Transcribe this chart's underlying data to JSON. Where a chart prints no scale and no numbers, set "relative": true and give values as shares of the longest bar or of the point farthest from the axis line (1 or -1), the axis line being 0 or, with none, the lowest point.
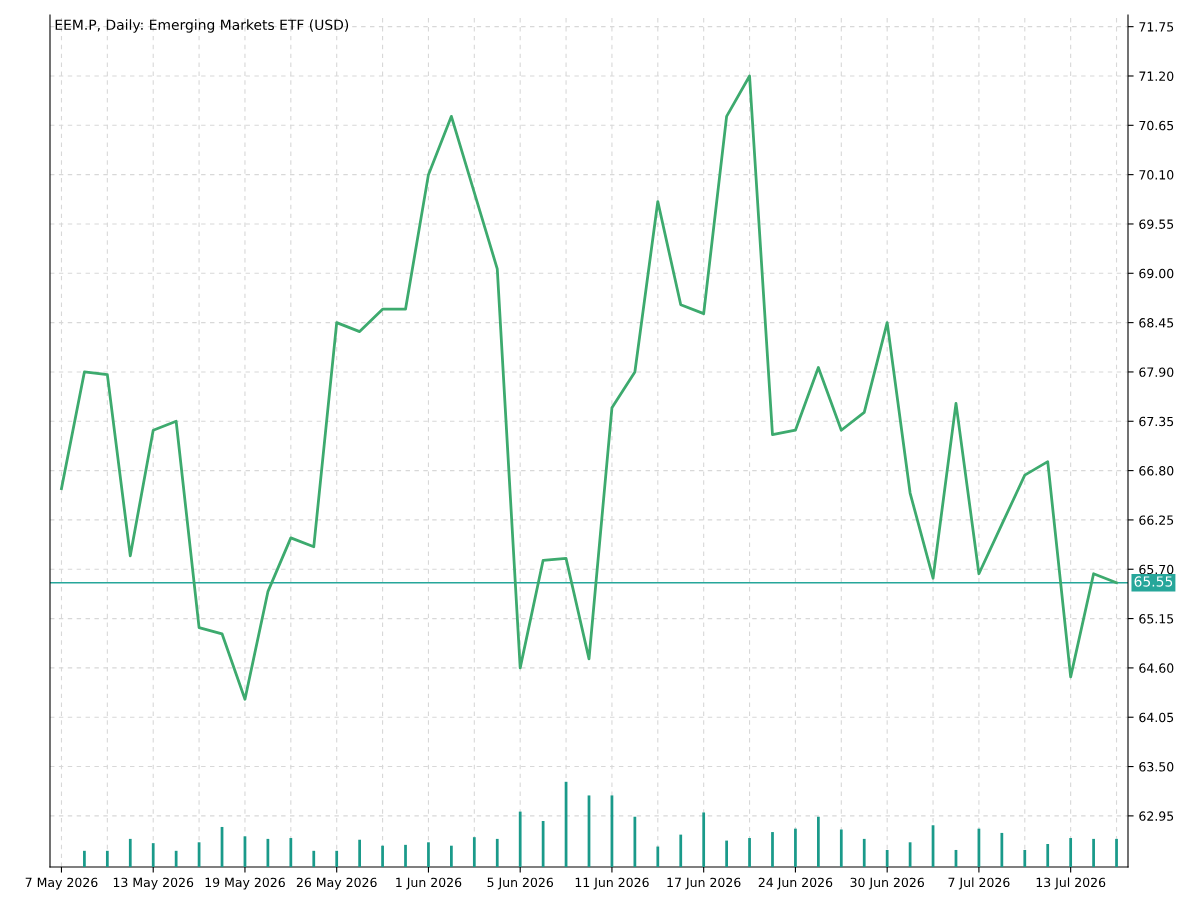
{
  "chart_data": [
    {
      "type": "line",
      "title": "EEM.P, Daily: Emerging Markets ETF (USD)",
      "categories": [
        "7 May 2026",
        null,
        null,
        null,
        "13 May 2026",
        null,
        null,
        null,
        "19 May 2026",
        null,
        null,
        null,
        "26 May 2026",
        null,
        null,
        null,
        "1 Jun 2026",
        null,
        null,
        null,
        "5 Jun 2026",
        null,
        null,
        null,
        "11 Jun 2026",
        null,
        null,
        null,
        "17 Jun 2026",
        null,
        null,
        null,
        "24 Jun 2026",
        null,
        null,
        null,
        "30 Jun 2026",
        null,
        null,
        null,
        "7 Jul 2026",
        null,
        null,
        null,
        "13 Jul 2026",
        null,
        null
      ],
      "series": [
        {
          "color": "#3daa6e",
          "values": [
            66.6,
            67.9,
            67.87,
            65.85,
            67.25,
            67.35,
            65.05,
            64.98,
            64.25,
            65.45,
            66.05,
            65.95,
            68.45,
            68.35,
            68.6,
            68.6,
            70.1,
            70.75,
            69.9,
            69.05,
            64.6,
            65.8,
            65.82,
            64.7,
            67.5,
            67.9,
            69.8,
            68.65,
            68.55,
            70.75,
            71.2,
            67.2,
            67.25,
            67.95,
            67.25,
            67.45,
            68.45,
            66.55,
            65.6,
            67.55,
            65.65,
            66.2,
            66.75,
            66.9,
            64.5,
            65.65,
            65.55
          ]
        }
      ],
      "ylim": [
        62.38,
        71.88
      ],
      "yticks": [
        {
          "value": 62.95,
          "label": "62.95"
        },
        {
          "value": 63.5,
          "label": "63.50"
        },
        {
          "value": 64.05,
          "label": "64.05"
        },
        {
          "value": 64.6,
          "label": "64.60"
        },
        {
          "value": 65.15,
          "label": "65.15"
        },
        {
          "value": 65.7,
          "label": "65.70"
        },
        {
          "value": 66.25,
          "label": "66.25"
        },
        {
          "value": 66.8,
          "label": "66.80"
        },
        {
          "value": 67.35,
          "label": "67.35"
        },
        {
          "value": 67.9,
          "label": "67.90"
        },
        {
          "value": 68.45,
          "label": "68.45"
        },
        {
          "value": 69.0,
          "label": "69.00"
        },
        {
          "value": 69.55,
          "label": "69.55"
        },
        {
          "value": 70.1,
          "label": "70.10"
        },
        {
          "value": 70.65,
          "label": "70.65"
        },
        {
          "value": 71.2,
          "label": "71.20"
        },
        {
          "value": 71.75,
          "label": "71.75"
        }
      ],
      "ref_lines": [
        {
          "axis": "y",
          "value": 65.55,
          "label": "65.55",
          "color": "#26a69a"
        }
      ],
      "grid": true
    },
    {
      "type": "bar",
      "relative": true,
      "categories": [
        null,
        null,
        null,
        null,
        null,
        null,
        null,
        null,
        null,
        null,
        null,
        null,
        null,
        null,
        null,
        null,
        null,
        null,
        null,
        null,
        null,
        null,
        null,
        null,
        null,
        null,
        null,
        null,
        null,
        null,
        null,
        null,
        null,
        null,
        null,
        null,
        null,
        null,
        null,
        null,
        null,
        null,
        null,
        null,
        null,
        null,
        null
      ],
      "series": [
        {
          "color": "#1a9a8a",
          "values": [
            null,
            0.19,
            0.19,
            0.33,
            0.28,
            0.19,
            0.29,
            0.47,
            0.36,
            0.33,
            0.34,
            0.19,
            0.19,
            0.32,
            0.25,
            0.26,
            0.29,
            0.25,
            0.35,
            0.33,
            0.65,
            0.54,
            1.0,
            0.84,
            0.84,
            0.59,
            0.24,
            0.38,
            0.64,
            0.31,
            0.34,
            0.41,
            0.45,
            0.59,
            0.44,
            0.33,
            0.2,
            0.29,
            0.49,
            0.2,
            0.45,
            0.4,
            0.2,
            0.27,
            0.34,
            0.33,
            0.33
          ]
        }
      ]
    }
  ]
}
